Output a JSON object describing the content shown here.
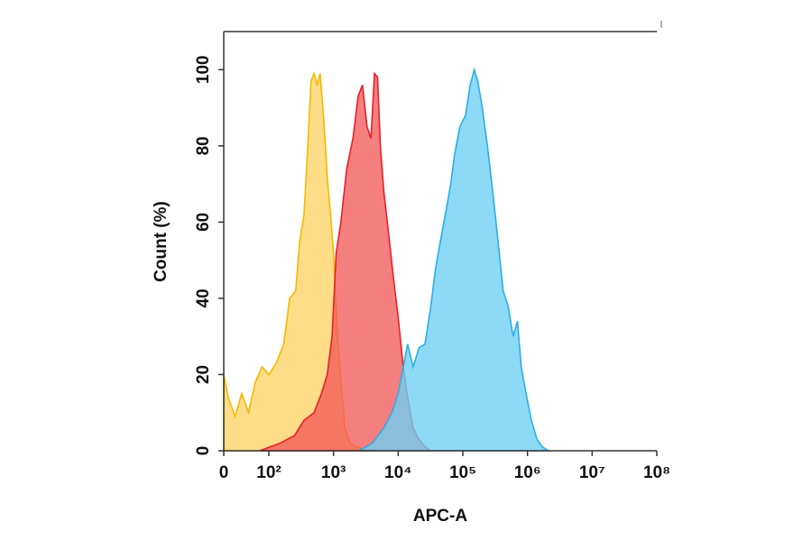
{
  "chart_data": {
    "type": "area",
    "xlabel": "APC-A",
    "ylabel": "Count  (%)",
    "xscale": "log",
    "xlim": [
      0,
      100000000
    ],
    "ylim": [
      0,
      110
    ],
    "xticks": [
      0,
      {
        "value": 100,
        "label": "10²"
      },
      {
        "value": 1000,
        "label": "10³"
      },
      {
        "value": 10000,
        "label": "10⁴"
      },
      {
        "value": 100000,
        "label": "10⁵"
      },
      {
        "value": 1000000,
        "label": "10⁶"
      },
      {
        "value": 10000000,
        "label": "10⁷"
      },
      {
        "value": 100000000,
        "label": "10⁸"
      }
    ],
    "yticks": [
      0,
      20,
      40,
      60,
      80,
      100
    ],
    "series": [
      {
        "color": "#f5b800",
        "fill": "#ffd366",
        "x": [
          0,
          10,
          25,
          40,
          55,
          70,
          85,
          100,
          130,
          170,
          210,
          260,
          300,
          350,
          400,
          450,
          500,
          560,
          620,
          700,
          800,
          900,
          1000,
          1150,
          1300,
          1500,
          1800,
          2200,
          3000,
          4000
        ],
        "values": [
          20,
          14,
          9,
          15,
          10,
          18,
          22,
          20,
          23,
          28,
          40,
          42,
          55,
          62,
          80,
          97,
          99,
          96,
          99,
          88,
          72,
          62,
          52,
          30,
          18,
          6,
          2,
          1,
          0.5,
          0
        ]
      },
      {
        "color": "#e8202a",
        "fill": "#f25a5a",
        "x": [
          80,
          150,
          250,
          350,
          500,
          650,
          800,
          950,
          1100,
          1300,
          1600,
          2000,
          2400,
          2800,
          3300,
          3800,
          4300,
          4800,
          5300,
          6000,
          7000,
          8500,
          10000,
          12000,
          14000,
          17000,
          21000,
          26000,
          32000
        ],
        "values": [
          0,
          2,
          4,
          8,
          10,
          15,
          20,
          30,
          52,
          60,
          74,
          82,
          93,
          96,
          85,
          82,
          99,
          98,
          80,
          68,
          58,
          45,
          35,
          22,
          14,
          6,
          3,
          1,
          0
        ]
      },
      {
        "color": "#2aaee6",
        "fill": "#6dcff4",
        "x": [
          2500,
          4000,
          6000,
          8000,
          10000,
          12000,
          14000,
          17000,
          21000,
          26000,
          32000,
          38000,
          45000,
          55000,
          65000,
          75000,
          90000,
          110000,
          130000,
          150000,
          170000,
          200000,
          240000,
          290000,
          350000,
          420000,
          500000,
          600000,
          700000,
          800000,
          950000,
          1150000,
          1400000,
          1700000,
          2100000
        ],
        "values": [
          0,
          2,
          6,
          10,
          15,
          22,
          28,
          22,
          27,
          28,
          38,
          48,
          55,
          63,
          70,
          78,
          85,
          88,
          96,
          100,
          97,
          90,
          80,
          68,
          55,
          42,
          38,
          30,
          34,
          22,
          15,
          8,
          3,
          1,
          0
        ]
      }
    ]
  }
}
